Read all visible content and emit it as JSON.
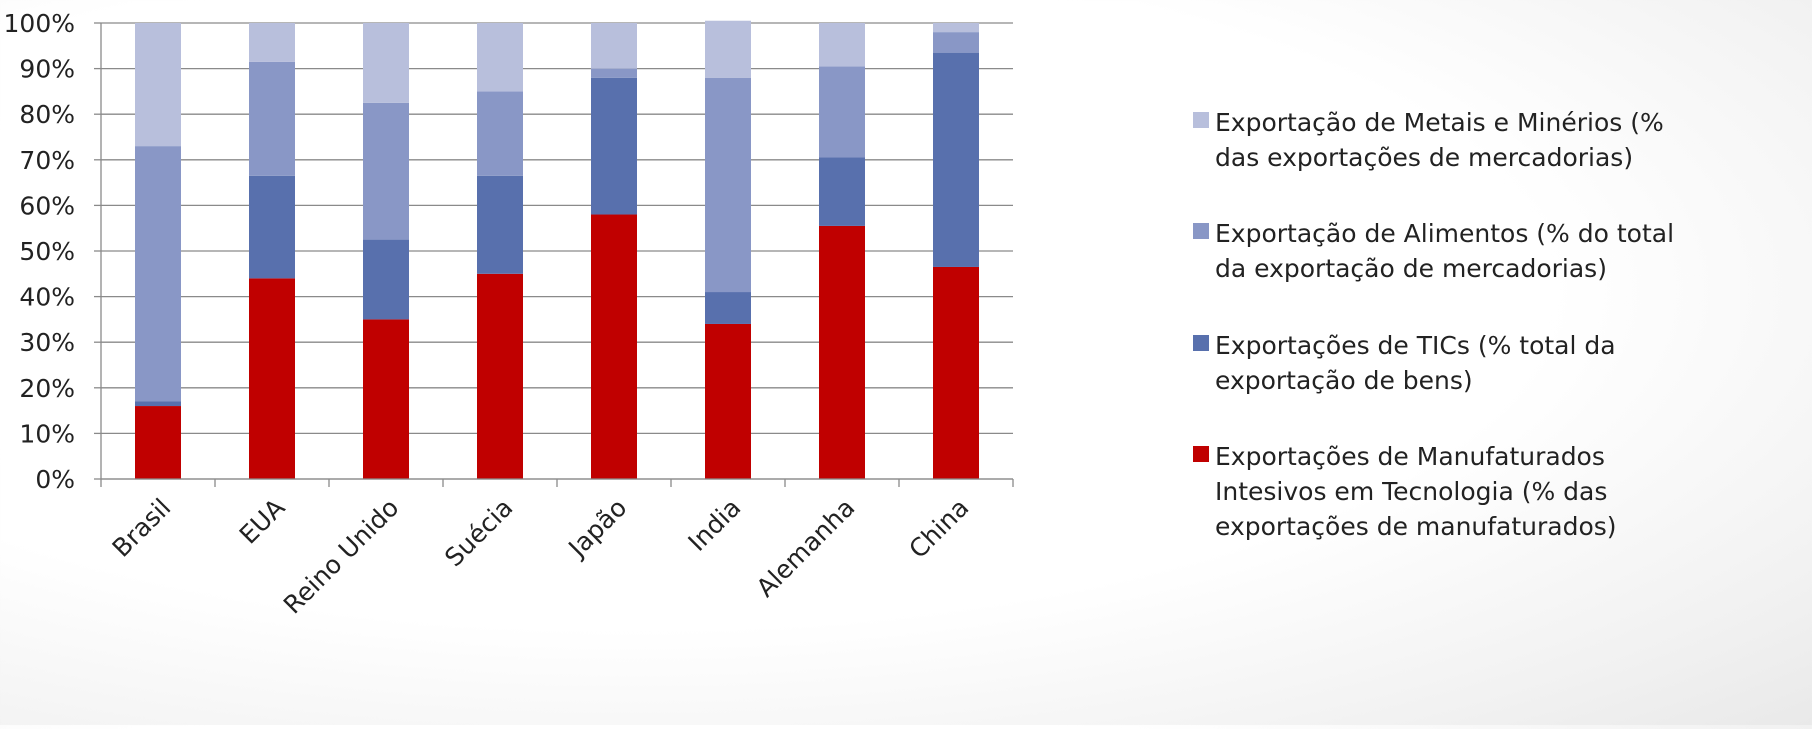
{
  "chart_data": {
    "type": "bar",
    "stacked": true,
    "categories": [
      "Brasil",
      "EUA",
      "Reino Unido",
      "Suécia",
      "Japão",
      "India",
      "Alemanha",
      "China"
    ],
    "series": [
      {
        "name": "Exportações de Manufaturados Intesivos em Tecnologia (% das exportações de manufaturados)",
        "color": "#c00000",
        "values": [
          16,
          44,
          35,
          45,
          58,
          34,
          55.5,
          46.5
        ]
      },
      {
        "name": "Exportações de TICs (% total da exportação de bens)",
        "color": "#5870ad",
        "values": [
          1,
          22.5,
          17.5,
          21.5,
          30,
          7,
          15,
          47
        ]
      },
      {
        "name": "Exportação de Alimentos (% do total da exportação de mercadorias)",
        "color": "#8997c6",
        "values": [
          56,
          25,
          30,
          18.5,
          2,
          47,
          20,
          4.5
        ]
      },
      {
        "name": "Exportação de Metais e Minérios (% das exportações de mercadorias)",
        "color": "#b8bfdc",
        "values": [
          27,
          8.5,
          17.5,
          15,
          10,
          12.5,
          9.5,
          2
        ]
      }
    ],
    "yticks": [
      "0%",
      "10%",
      "20%",
      "30%",
      "40%",
      "50%",
      "60%",
      "70%",
      "80%",
      "90%",
      "100%"
    ],
    "ylim": [
      0,
      100
    ],
    "grid": true,
    "legend_position": "right",
    "legend": [
      {
        "lines": [
          "Exportação de Metais e Minérios (%",
          "das exportações de mercadorias)"
        ],
        "color": "#b8bfdc"
      },
      {
        "lines": [
          "Exportação de Alimentos (% do total",
          "da exportação de mercadorias)"
        ],
        "color": "#8997c6"
      },
      {
        "lines": [
          "Exportações de TICs (% total da",
          "exportação de bens)"
        ],
        "color": "#5870ad"
      },
      {
        "lines": [
          "Exportações de Manufaturados",
          "Intesivos em Tecnologia (% das",
          "exportações de manufaturados)"
        ],
        "color": "#c00000"
      }
    ]
  }
}
